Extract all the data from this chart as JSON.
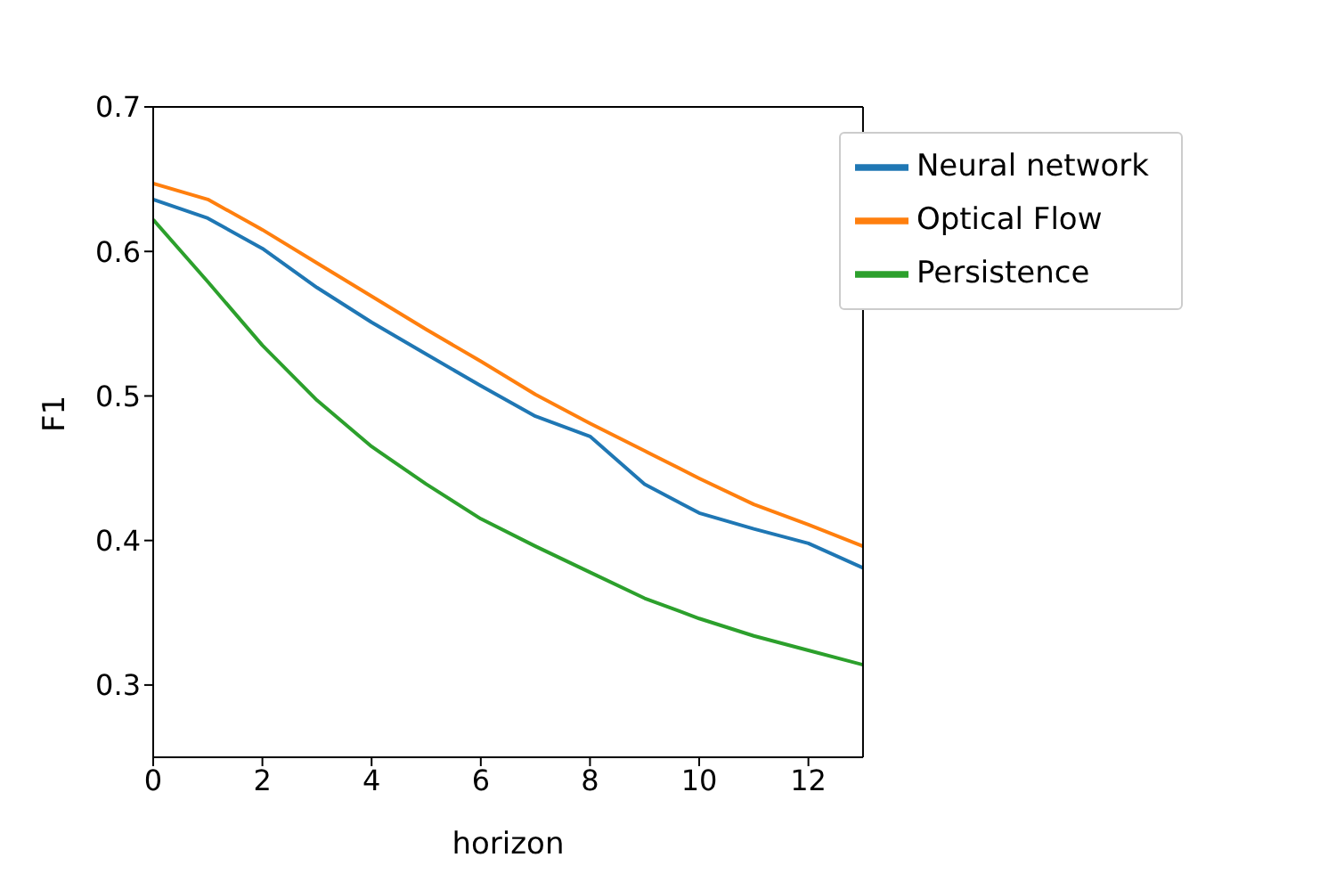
{
  "chart_data": {
    "type": "line",
    "xlabel": "horizon",
    "ylabel": "F1",
    "x": [
      0,
      1,
      2,
      3,
      4,
      5,
      6,
      7,
      8,
      9,
      10,
      11,
      12,
      13
    ],
    "series": [
      {
        "name": "Neural network",
        "color": "#1f77b4",
        "values": [
          0.636,
          0.623,
          0.602,
          0.575,
          0.551,
          0.529,
          0.507,
          0.486,
          0.472,
          0.439,
          0.419,
          0.408,
          0.398,
          0.381
        ]
      },
      {
        "name": "Optical Flow",
        "color": "#ff7f0e",
        "values": [
          0.647,
          0.636,
          0.615,
          0.592,
          0.569,
          0.546,
          0.524,
          0.501,
          0.481,
          0.462,
          0.443,
          0.425,
          0.411,
          0.396
        ]
      },
      {
        "name": "Persistence",
        "color": "#2ca02c",
        "values": [
          0.622,
          0.579,
          0.535,
          0.497,
          0.465,
          0.439,
          0.415,
          0.396,
          0.378,
          0.36,
          0.346,
          0.334,
          0.324,
          0.314
        ]
      }
    ],
    "xlim": [
      0,
      13
    ],
    "xticks": [
      0,
      2,
      4,
      6,
      8,
      10,
      12
    ],
    "ylim": [
      0.25,
      0.7
    ],
    "yticks": [
      0.3,
      0.4,
      0.5,
      0.6,
      0.7
    ],
    "grid": false,
    "legend": "top right",
    "marker": "none",
    "line_style": "solid"
  }
}
